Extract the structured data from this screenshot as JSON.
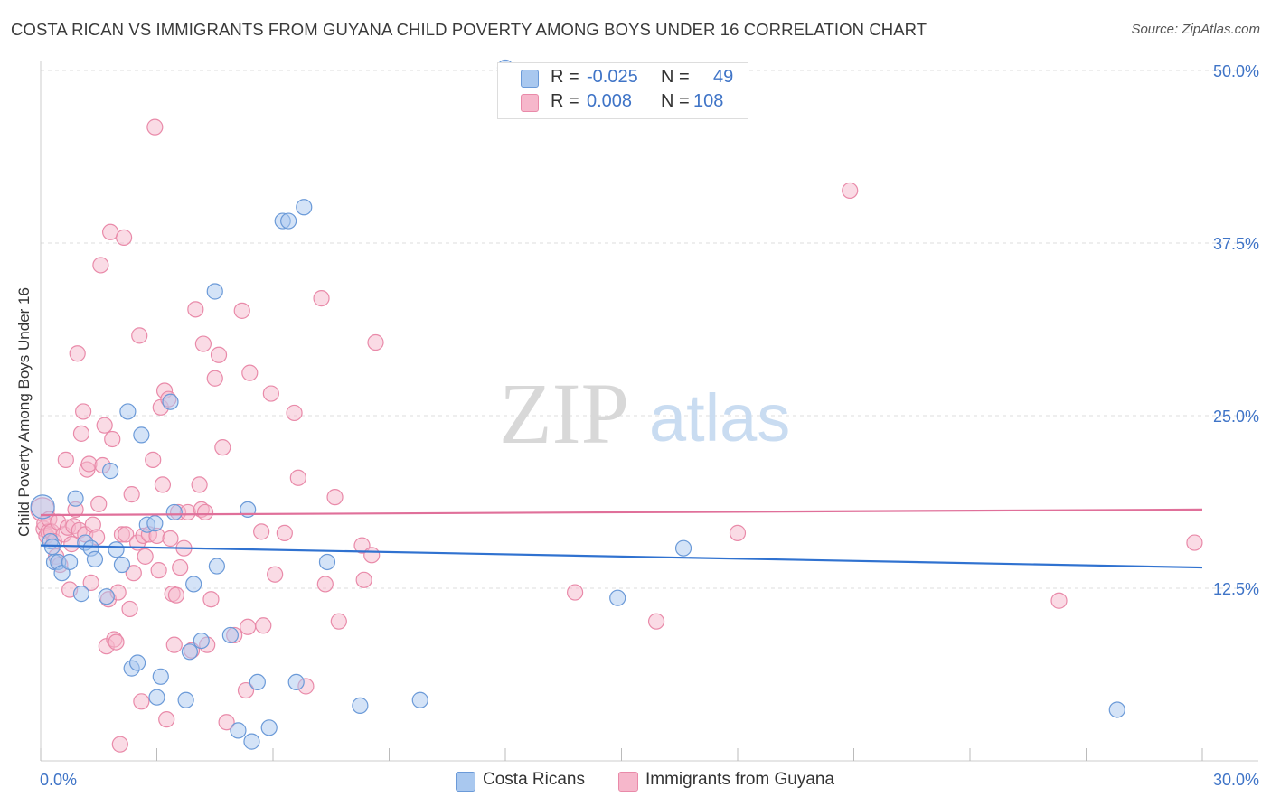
{
  "title": "COSTA RICAN VS IMMIGRANTS FROM GUYANA CHILD POVERTY AMONG BOYS UNDER 16 CORRELATION CHART",
  "source": "Source: ZipAtlas.com",
  "watermark": {
    "zip": "ZIP",
    "atlas": "atlas"
  },
  "legend": {
    "rows": [
      {
        "r_label": "R =",
        "r_value": "-0.025",
        "n_label": "N =",
        "n_value": "49"
      },
      {
        "r_label": "R =",
        "r_value": "0.008",
        "n_label": "N =",
        "n_value": "108"
      }
    ]
  },
  "bottom_legend": [
    "Costa Ricans",
    "Immigrants from Guyana"
  ],
  "colors": {
    "blue_fill": "#a9c8ef",
    "blue_stroke": "#6b9ad8",
    "blue_line": "#3072d0",
    "pink_fill": "#f6b7cb",
    "pink_stroke": "#e98aa9",
    "pink_line": "#e0709a",
    "grid": "#dddddd",
    "axis_text": "#3f74c7"
  },
  "chart_data": {
    "type": "scatter",
    "title": "COSTA RICAN VS IMMIGRANTS FROM GUYANA CHILD POVERTY AMONG BOYS UNDER 16 CORRELATION CHART",
    "xlabel": "",
    "ylabel": "Child Poverty Among Boys Under 16",
    "xlim": [
      0,
      30
    ],
    "ylim": [
      0,
      50
    ],
    "x_tick_labels": [
      "0.0%",
      "30.0%"
    ],
    "y_ticks": [
      12.5,
      25.0,
      37.5,
      50.0
    ],
    "y_tick_labels": [
      "12.5%",
      "25.0%",
      "37.5%",
      "50.0%"
    ],
    "grid": true,
    "series": [
      {
        "name": "Costa Ricans",
        "r": -0.025,
        "n": 49,
        "trend": {
          "x": [
            0,
            30
          ],
          "y": [
            15.6,
            14.0
          ]
        },
        "points": [
          [
            0.05,
            18.4
          ],
          [
            0.25,
            15.9
          ],
          [
            0.3,
            15.5
          ],
          [
            0.35,
            14.4
          ],
          [
            0.45,
            14.4
          ],
          [
            0.55,
            13.6
          ],
          [
            0.75,
            14.4
          ],
          [
            0.9,
            19.0
          ],
          [
            1.05,
            12.1
          ],
          [
            1.15,
            15.8
          ],
          [
            1.3,
            15.4
          ],
          [
            1.4,
            14.6
          ],
          [
            1.7,
            11.9
          ],
          [
            1.8,
            21.0
          ],
          [
            1.95,
            15.3
          ],
          [
            2.1,
            14.2
          ],
          [
            2.25,
            25.3
          ],
          [
            2.35,
            6.7
          ],
          [
            2.5,
            7.1
          ],
          [
            2.6,
            23.6
          ],
          [
            2.75,
            17.1
          ],
          [
            2.95,
            17.2
          ],
          [
            3.0,
            4.6
          ],
          [
            3.1,
            6.1
          ],
          [
            3.35,
            26.0
          ],
          [
            3.45,
            18.0
          ],
          [
            3.75,
            4.4
          ],
          [
            3.85,
            7.9
          ],
          [
            3.95,
            12.8
          ],
          [
            4.15,
            8.7
          ],
          [
            4.5,
            34.0
          ],
          [
            4.55,
            14.1
          ],
          [
            4.9,
            9.1
          ],
          [
            5.1,
            2.2
          ],
          [
            5.35,
            18.2
          ],
          [
            5.45,
            1.4
          ],
          [
            5.6,
            5.7
          ],
          [
            5.9,
            2.4
          ],
          [
            6.25,
            39.1
          ],
          [
            6.4,
            39.1
          ],
          [
            6.6,
            5.7
          ],
          [
            6.8,
            40.1
          ],
          [
            7.4,
            14.4
          ],
          [
            8.25,
            4.0
          ],
          [
            9.8,
            4.4
          ],
          [
            12.0,
            50.2
          ],
          [
            14.9,
            11.8
          ],
          [
            16.6,
            15.4
          ],
          [
            27.8,
            3.7
          ]
        ]
      },
      {
        "name": "Immigrants from Guyana",
        "r": 0.008,
        "n": 108,
        "trend": {
          "x": [
            0,
            30
          ],
          "y": [
            17.8,
            18.2
          ]
        },
        "points": [
          [
            0.05,
            18.2
          ],
          [
            0.08,
            16.8
          ],
          [
            0.1,
            17.2
          ],
          [
            0.15,
            16.3
          ],
          [
            0.2,
            16.6
          ],
          [
            0.22,
            17.5
          ],
          [
            0.28,
            16.6
          ],
          [
            0.35,
            15.9
          ],
          [
            0.4,
            14.8
          ],
          [
            0.45,
            17.3
          ],
          [
            0.5,
            14.2
          ],
          [
            0.6,
            16.4
          ],
          [
            0.65,
            21.8
          ],
          [
            0.7,
            16.9
          ],
          [
            0.75,
            12.4
          ],
          [
            0.8,
            15.7
          ],
          [
            0.85,
            17.0
          ],
          [
            0.9,
            18.2
          ],
          [
            0.95,
            29.5
          ],
          [
            1.0,
            16.7
          ],
          [
            1.05,
            23.7
          ],
          [
            1.1,
            25.3
          ],
          [
            1.15,
            16.4
          ],
          [
            1.2,
            21.1
          ],
          [
            1.25,
            21.5
          ],
          [
            1.3,
            12.9
          ],
          [
            1.35,
            17.1
          ],
          [
            1.45,
            16.2
          ],
          [
            1.5,
            18.6
          ],
          [
            1.55,
            35.9
          ],
          [
            1.6,
            21.4
          ],
          [
            1.65,
            24.3
          ],
          [
            1.7,
            8.3
          ],
          [
            1.75,
            11.7
          ],
          [
            1.8,
            38.3
          ],
          [
            1.85,
            23.3
          ],
          [
            1.9,
            8.8
          ],
          [
            1.95,
            8.6
          ],
          [
            2.0,
            12.2
          ],
          [
            2.05,
            1.2
          ],
          [
            2.1,
            16.4
          ],
          [
            2.15,
            37.9
          ],
          [
            2.2,
            16.4
          ],
          [
            2.3,
            11.0
          ],
          [
            2.35,
            19.3
          ],
          [
            2.4,
            13.6
          ],
          [
            2.5,
            15.8
          ],
          [
            2.55,
            30.8
          ],
          [
            2.6,
            4.3
          ],
          [
            2.65,
            16.3
          ],
          [
            2.7,
            14.8
          ],
          [
            2.8,
            16.4
          ],
          [
            2.9,
            21.8
          ],
          [
            2.95,
            45.9
          ],
          [
            3.0,
            16.3
          ],
          [
            3.05,
            13.8
          ],
          [
            3.1,
            25.6
          ],
          [
            3.15,
            20.0
          ],
          [
            3.2,
            26.8
          ],
          [
            3.25,
            3.0
          ],
          [
            3.3,
            26.2
          ],
          [
            3.35,
            16.1
          ],
          [
            3.4,
            12.1
          ],
          [
            3.45,
            8.4
          ],
          [
            3.5,
            12.0
          ],
          [
            3.55,
            18.0
          ],
          [
            3.6,
            14.0
          ],
          [
            3.7,
            15.4
          ],
          [
            3.8,
            18.0
          ],
          [
            3.9,
            8.0
          ],
          [
            4.0,
            32.7
          ],
          [
            4.1,
            20.0
          ],
          [
            4.15,
            18.2
          ],
          [
            4.2,
            30.2
          ],
          [
            4.25,
            18.0
          ],
          [
            4.3,
            8.4
          ],
          [
            4.4,
            11.7
          ],
          [
            4.5,
            27.7
          ],
          [
            4.6,
            29.4
          ],
          [
            4.7,
            22.7
          ],
          [
            4.8,
            2.8
          ],
          [
            5.0,
            9.1
          ],
          [
            5.2,
            32.6
          ],
          [
            5.3,
            5.1
          ],
          [
            5.35,
            9.7
          ],
          [
            5.4,
            28.1
          ],
          [
            5.7,
            16.6
          ],
          [
            5.75,
            9.8
          ],
          [
            5.95,
            26.6
          ],
          [
            6.05,
            13.5
          ],
          [
            6.3,
            16.5
          ],
          [
            6.55,
            25.2
          ],
          [
            6.65,
            20.5
          ],
          [
            6.85,
            5.4
          ],
          [
            7.25,
            33.5
          ],
          [
            7.35,
            12.8
          ],
          [
            7.6,
            19.1
          ],
          [
            7.7,
            10.1
          ],
          [
            8.3,
            15.6
          ],
          [
            8.35,
            13.1
          ],
          [
            8.55,
            14.9
          ],
          [
            8.65,
            30.3
          ],
          [
            13.8,
            12.2
          ],
          [
            15.9,
            10.1
          ],
          [
            18.0,
            16.5
          ],
          [
            20.9,
            41.3
          ],
          [
            26.3,
            11.6
          ],
          [
            29.8,
            15.8
          ]
        ]
      }
    ]
  }
}
